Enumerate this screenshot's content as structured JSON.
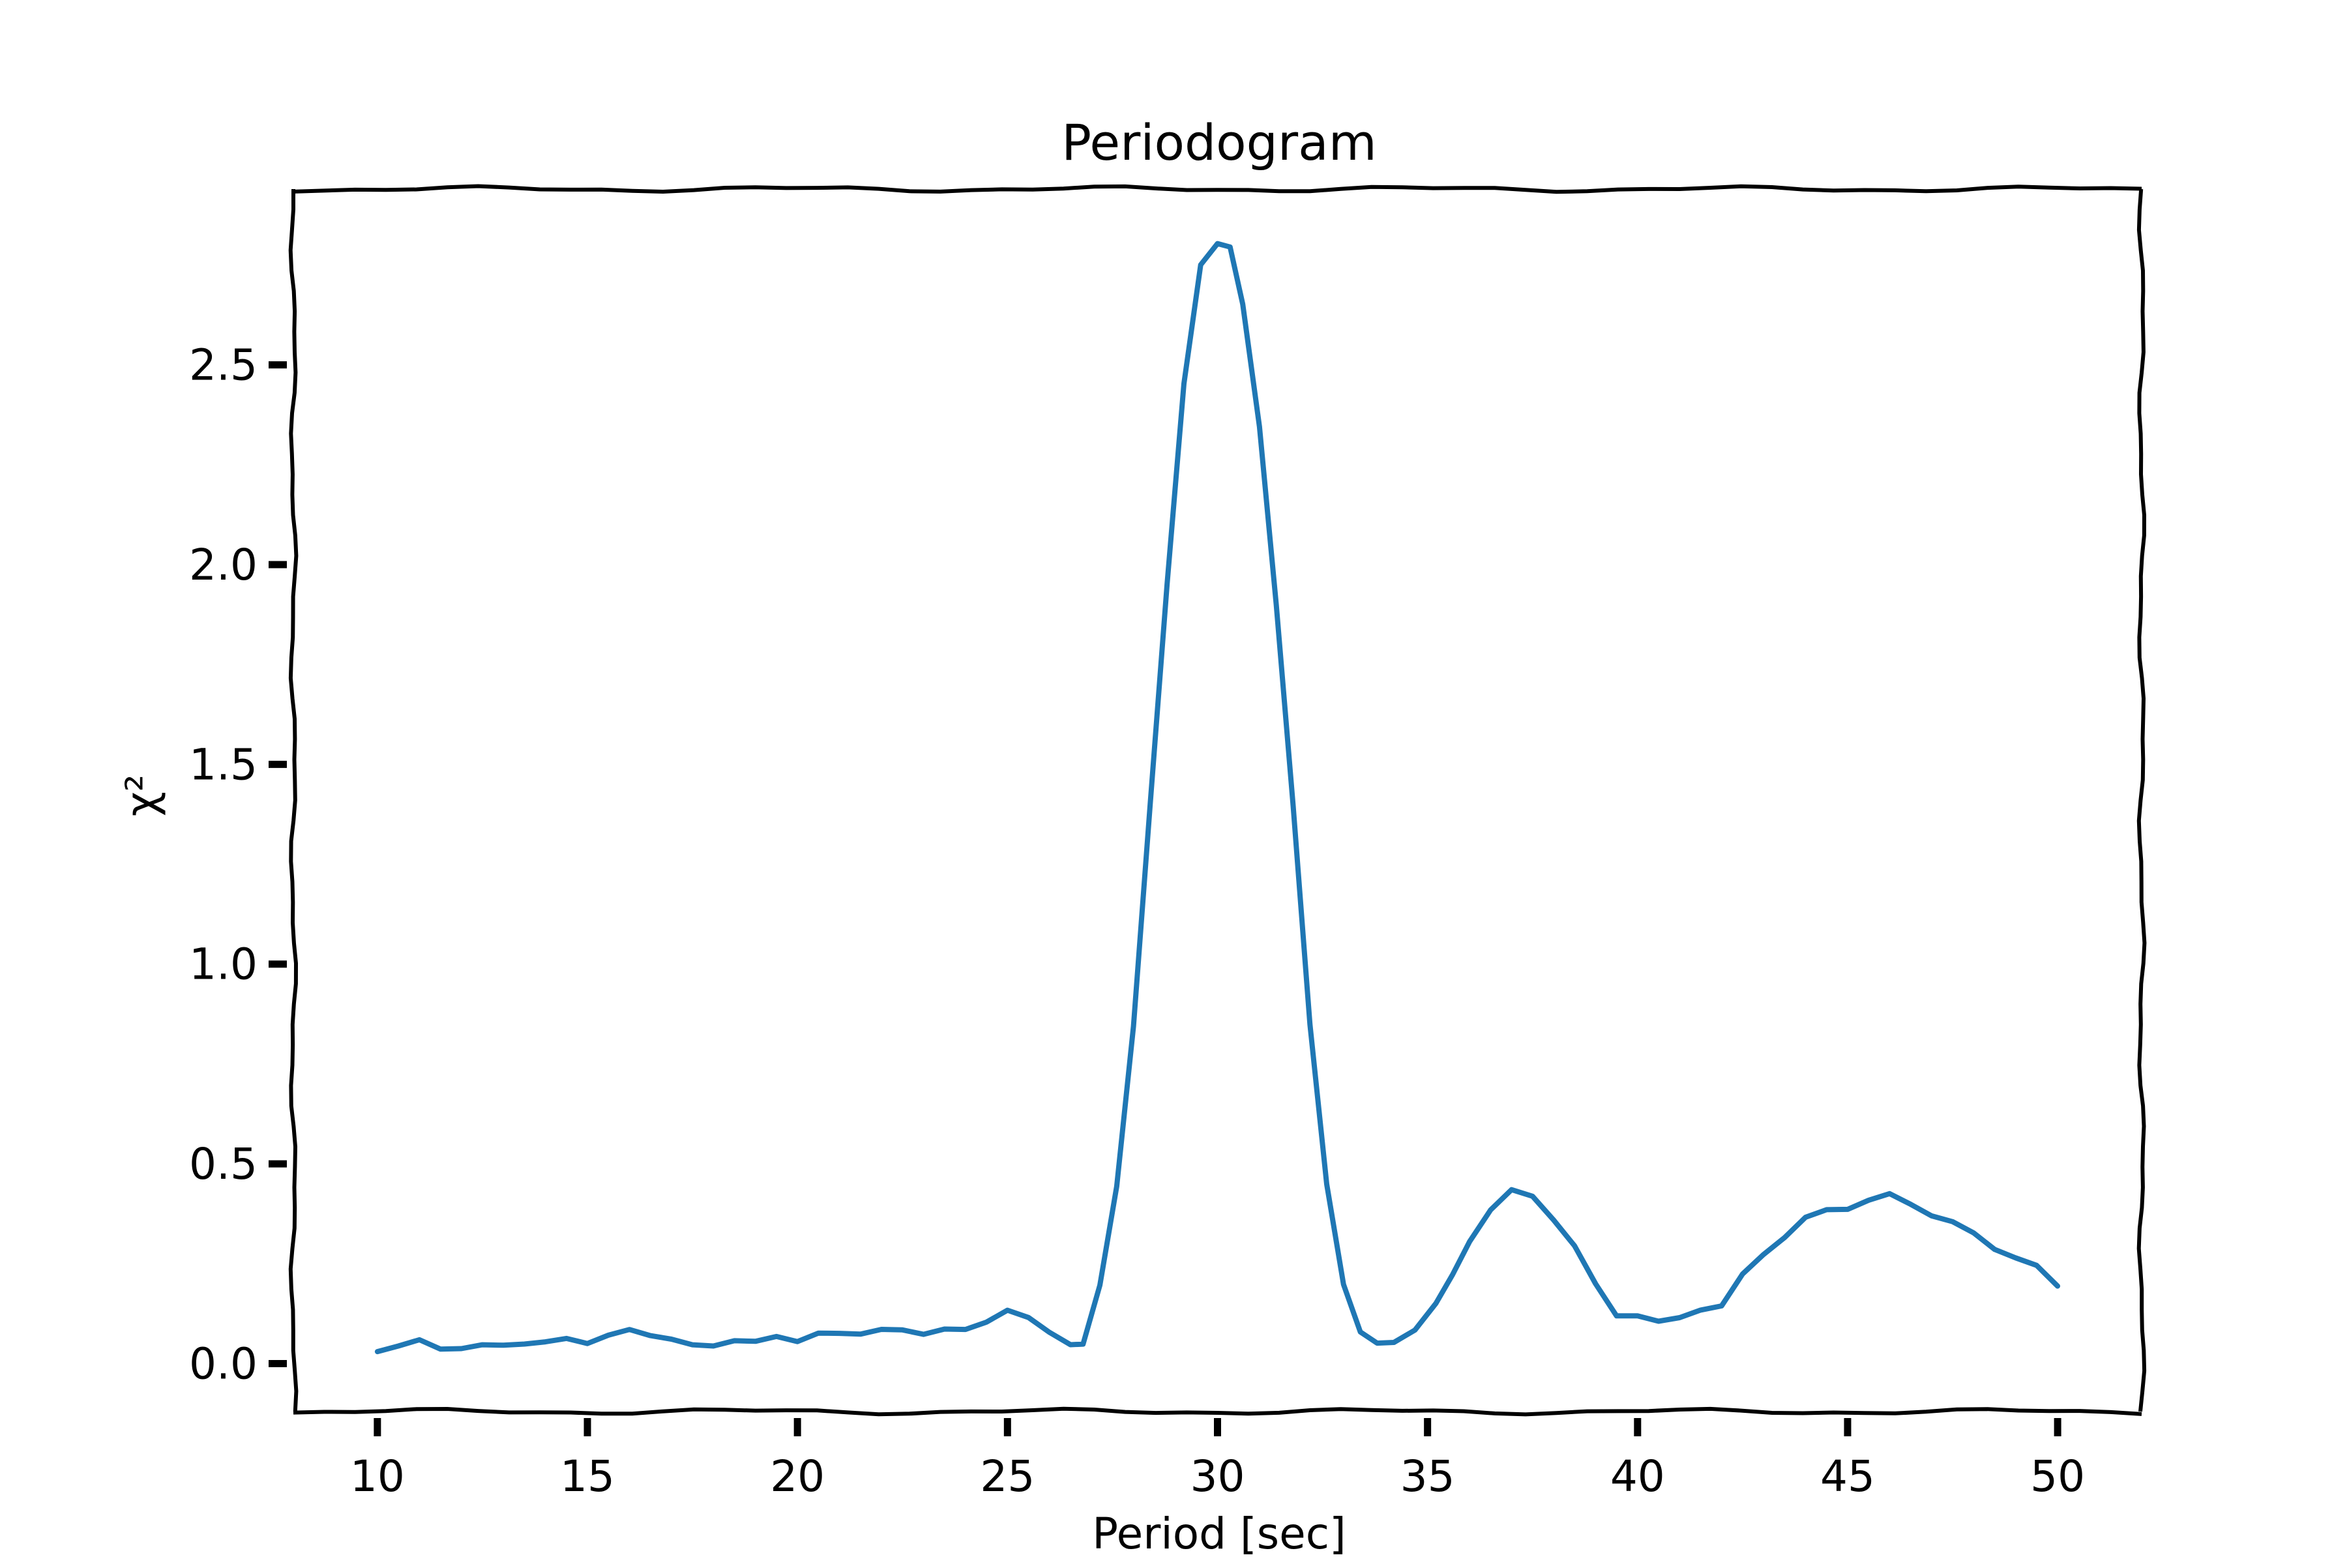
{
  "chart_data": {
    "type": "line",
    "title": "Periodogram",
    "xlabel": "Period [sec]",
    "ylabel": "χ²",
    "xlim": [
      8.0,
      52.0
    ],
    "ylim": [
      -0.12,
      2.94
    ],
    "xticks": [
      10,
      15,
      20,
      25,
      30,
      35,
      40,
      45,
      50
    ],
    "xtick_labels": [
      "10",
      "15",
      "20",
      "25",
      "30",
      "35",
      "40",
      "45",
      "50"
    ],
    "yticks": [
      0.0,
      0.5,
      1.0,
      1.5,
      2.0,
      2.5
    ],
    "ytick_labels": [
      "0.0",
      "0.5",
      "1.0",
      "1.5",
      "2.0",
      "2.5"
    ],
    "grid": false,
    "series": [
      {
        "color": "#1f77b4",
        "x": [
          10,
          10.5,
          11,
          11.5,
          12,
          12.5,
          13,
          13.5,
          14,
          14.5,
          15,
          15.5,
          16,
          16.5,
          17,
          17.5,
          18,
          18.5,
          19,
          19.5,
          20,
          20.5,
          21,
          21.5,
          22,
          22.5,
          23,
          23.5,
          24,
          24.5,
          25,
          25.5,
          26,
          26.5,
          26.8,
          27.2,
          27.6,
          28,
          28.4,
          28.8,
          29.2,
          29.6,
          30,
          30.3,
          30.6,
          31,
          31.4,
          31.8,
          32.2,
          32.6,
          33,
          33.4,
          33.8,
          34.2,
          34.7,
          35.2,
          35.6,
          36,
          36.5,
          37,
          37.5,
          38,
          38.5,
          39,
          39.5,
          40,
          40.5,
          41,
          41.5,
          42,
          42.5,
          43,
          43.5,
          44,
          44.5,
          45,
          45.5,
          46,
          46.5,
          47,
          47.5,
          48,
          48.5,
          49,
          49.5,
          50
        ],
        "y": [
          0.03,
          0.05,
          0.06,
          0.04,
          0.04,
          0.05,
          0.05,
          0.05,
          0.05,
          0.06,
          0.05,
          0.07,
          0.08,
          0.07,
          0.06,
          0.05,
          0.05,
          0.06,
          0.06,
          0.07,
          0.06,
          0.08,
          0.08,
          0.07,
          0.08,
          0.08,
          0.07,
          0.08,
          0.08,
          0.1,
          0.14,
          0.12,
          0.08,
          0.05,
          0.05,
          0.2,
          0.45,
          0.85,
          1.4,
          1.95,
          2.45,
          2.75,
          2.8,
          2.79,
          2.65,
          2.35,
          1.9,
          1.4,
          0.85,
          0.45,
          0.2,
          0.08,
          0.05,
          0.05,
          0.08,
          0.15,
          0.22,
          0.3,
          0.38,
          0.43,
          0.42,
          0.36,
          0.3,
          0.2,
          0.12,
          0.12,
          0.11,
          0.11,
          0.13,
          0.14,
          0.22,
          0.27,
          0.31,
          0.36,
          0.38,
          0.39,
          0.41,
          0.43,
          0.4,
          0.37,
          0.36,
          0.33,
          0.28,
          0.26,
          0.24,
          0.19
        ]
      }
    ]
  }
}
